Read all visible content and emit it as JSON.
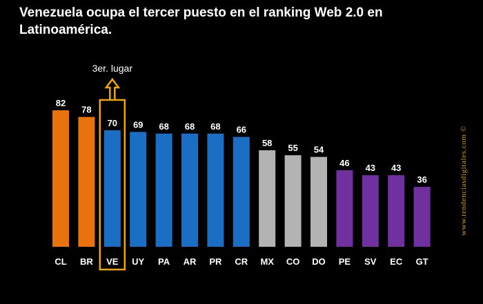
{
  "title": "Venezuela ocupa el tercer puesto en el ranking Web 2.0 en Latinoamérica.",
  "watermark": "www.tendenciasdigitales.com ©",
  "annotation": "3er. lugar",
  "colors": {
    "background": "#000000",
    "orange": "#e8720c",
    "blue": "#1a6fc4",
    "gray": "#b3b3b3",
    "purple": "#7030a0",
    "highlight": "#f0a800"
  },
  "chart_data": {
    "type": "bar",
    "title": "Venezuela ocupa el tercer puesto en el ranking Web 2.0 en Latinoamérica.",
    "categories": [
      "CL",
      "BR",
      "VE",
      "UY",
      "PA",
      "AR",
      "PR",
      "CR",
      "MX",
      "CO",
      "DO",
      "PE",
      "SV",
      "EC",
      "GT"
    ],
    "values": [
      82,
      78,
      70,
      69,
      68,
      68,
      68,
      66,
      58,
      55,
      54,
      46,
      43,
      43,
      36
    ],
    "bar_colors": [
      "orange",
      "orange",
      "blue",
      "blue",
      "blue",
      "blue",
      "blue",
      "blue",
      "gray",
      "gray",
      "gray",
      "purple",
      "purple",
      "purple",
      "purple"
    ],
    "highlighted_category": "VE",
    "ylim": [
      0,
      82
    ],
    "grid": false,
    "legend": "none"
  }
}
